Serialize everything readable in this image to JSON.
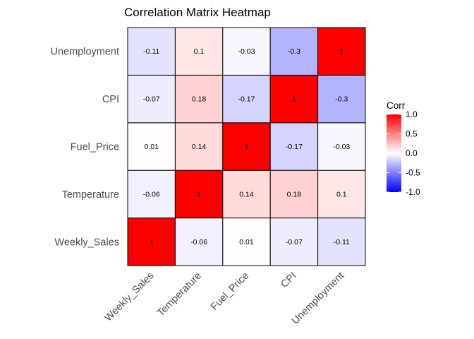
{
  "chart_data": {
    "type": "heatmap",
    "title": "Correlation Matrix Heatmap",
    "xlabel": "",
    "ylabel": "",
    "variables": [
      "Weekly_Sales",
      "Temperature",
      "Fuel_Price",
      "CPI",
      "Unemployment"
    ],
    "matrix": [
      [
        1,
        -0.06,
        0.01,
        -0.07,
        -0.11
      ],
      [
        -0.06,
        1,
        0.14,
        0.18,
        0.1
      ],
      [
        0.01,
        0.14,
        1,
        -0.17,
        -0.03
      ],
      [
        -0.07,
        0.18,
        -0.17,
        1,
        -0.3
      ],
      [
        -0.11,
        0.1,
        -0.03,
        -0.3,
        1
      ]
    ],
    "matrix_labels": [
      [
        "1",
        "-0.06",
        "0.01",
        "-0.07",
        "-0.11"
      ],
      [
        "-0.06",
        "1",
        "0.14",
        "0.18",
        "0.1"
      ],
      [
        "0.01",
        "0.14",
        "1",
        "-0.17",
        "-0.03"
      ],
      [
        "-0.07",
        "0.18",
        "-0.17",
        "1",
        "-0.3"
      ],
      [
        "-0.11",
        "0.1",
        "-0.03",
        "-0.3",
        "1"
      ]
    ],
    "legend": {
      "title": "Corr",
      "placement": "right",
      "range": [
        -1,
        1
      ],
      "ticks": [
        1,
        0.5,
        0,
        -0.5,
        -1
      ],
      "tick_labels": [
        "1.0",
        "0.5",
        "0.0",
        "-0.5",
        "-1.0"
      ]
    },
    "colors": {
      "low": "#0000ff",
      "mid": "#ffffff",
      "high": "#ff0000",
      "cell_border": "#000000"
    },
    "grid": false
  }
}
